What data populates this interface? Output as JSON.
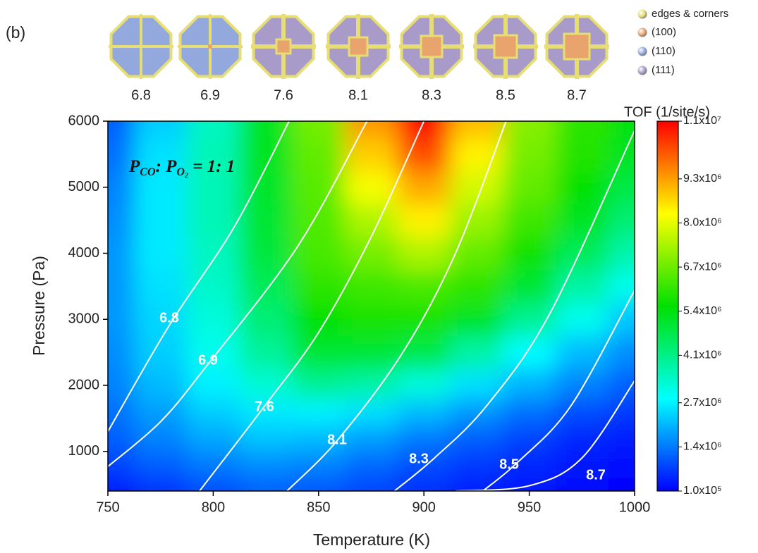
{
  "chart_data": {
    "type": "contour",
    "panel_label": "(b)",
    "xlabel": "Temperature (K)",
    "ylabel": "Pressure (Pa)",
    "colorbar_label": "TOF (1/site/s)",
    "annotation": [
      "P",
      "CO",
      ": ",
      "P",
      "O",
      "2",
      " = 1: 1"
    ],
    "xlim": [
      750,
      1000
    ],
    "xticks": [
      750,
      800,
      850,
      900,
      950,
      1000
    ],
    "ylim": [
      400,
      6000
    ],
    "yticks": [
      1000,
      2000,
      3000,
      4000,
      5000,
      6000
    ],
    "clim": [
      100000.0,
      11000000.0
    ],
    "cticks": [
      {
        "value": 100000.0,
        "label": "1.0x10⁵"
      },
      {
        "value": 1400000.0,
        "label": "1.4x10⁶"
      },
      {
        "value": 2700000.0,
        "label": "2.7x10⁶"
      },
      {
        "value": 4100000.0,
        "label": "4.1x10⁶"
      },
      {
        "value": 5400000.0,
        "label": "5.4x10⁶"
      },
      {
        "value": 6700000.0,
        "label": "6.7x10⁶"
      },
      {
        "value": 8000000.0,
        "label": "8.0x10⁶"
      },
      {
        "value": 9300000.0,
        "label": "9.3x10⁶"
      },
      {
        "value": 11000000.0,
        "label": "1.1x10⁷"
      }
    ],
    "colormap": [
      "#0000ff",
      "#00ffff",
      "#00e000",
      "#ffff00",
      "#ff0000"
    ],
    "x": [
      750,
      775,
      800,
      825,
      850,
      875,
      900,
      925,
      950,
      975,
      1000
    ],
    "y": [
      400,
      800,
      1200,
      1600,
      2000,
      2500,
      3000,
      3500,
      4000,
      4500,
      5000,
      5500,
      6000
    ],
    "z": [
      [
        300000.0,
        600000.0,
        900000.0,
        1100000.0,
        1000000.0,
        800000.0,
        600000.0,
        400000.0,
        300000.0,
        200000.0,
        100000.0
      ],
      [
        800000.0,
        1100000.0,
        1400000.0,
        1600000.0,
        1500000.0,
        1200000.0,
        900000.0,
        700000.0,
        500000.0,
        300000.0,
        200000.0
      ],
      [
        1100000.0,
        1500000.0,
        1900000.0,
        2200000.0,
        2100000.0,
        1800000.0,
        1400000.0,
        1100000.0,
        800000.0,
        500000.0,
        400000.0
      ],
      [
        1300000.0,
        1800000.0,
        2300000.0,
        2600000.0,
        2700000.0,
        2500000.0,
        2100000.0,
        1700000.0,
        1300000.0,
        900000.0,
        700000.0
      ],
      [
        1500000.0,
        2100000.0,
        2700000.0,
        3300000.0,
        4000000.0,
        3800000.0,
        3200000.0,
        2500000.0,
        2000000.0,
        1500000.0,
        1100000.0
      ],
      [
        1600000.0,
        2300000.0,
        3000000.0,
        3900000.0,
        5000000.0,
        5000000.0,
        4800000.0,
        3800000.0,
        2800000.0,
        2100000.0,
        1600000.0
      ],
      [
        1700000.0,
        2400000.0,
        3200000.0,
        4300000.0,
        5600000.0,
        5800000.0,
        5800000.0,
        5200000.0,
        4000000.0,
        3000000.0,
        2200000.0
      ],
      [
        1700000.0,
        2500000.0,
        3400000.0,
        4600000.0,
        6000000.0,
        6200000.0,
        6300000.0,
        6000000.0,
        5000000.0,
        3800000.0,
        3000000.0
      ],
      [
        1700000.0,
        2600000.0,
        3500000.0,
        4900000.0,
        6300000.0,
        6800000.0,
        7400000.0,
        6600000.0,
        5700000.0,
        4600000.0,
        3700000.0
      ],
      [
        1600000.0,
        2600000.0,
        3600000.0,
        5000000.0,
        6400000.0,
        7400000.0,
        8400000.0,
        7200000.0,
        6200000.0,
        5200000.0,
        4300000.0
      ],
      [
        1500000.0,
        2600000.0,
        3600000.0,
        5100000.0,
        6500000.0,
        8200000.0,
        9200000.0,
        7800000.0,
        6600000.0,
        5600000.0,
        4800000.0
      ],
      [
        1300000.0,
        2500000.0,
        3600000.0,
        5200000.0,
        6600000.0,
        8800000.0,
        10200000.0,
        8400000.0,
        6800000.0,
        5900000.0,
        5200000.0
      ],
      [
        1100000.0,
        2300000.0,
        3500000.0,
        5200000.0,
        6800000.0,
        9400000.0,
        11000000.0,
        9000000.0,
        7000000.0,
        6000000.0,
        5400000.0
      ]
    ],
    "contours": [
      {
        "label": "6.8",
        "x": [
          750,
          779,
          810,
          836
        ],
        "y": [
          1300,
          2900,
          4400,
          6000
        ]
      },
      {
        "label": "6.9",
        "x": [
          750,
          775,
          797,
          840,
          873
        ],
        "y": [
          770,
          1450,
          2300,
          4100,
          6000
        ]
      },
      {
        "label": "7.6",
        "x": [
          793.5,
          824,
          850,
          875,
          900
        ],
        "y": [
          400,
          1670,
          2800,
          4250,
          6000
        ]
      },
      {
        "label": "8.1",
        "x": [
          835,
          859,
          890,
          915,
          939
        ],
        "y": [
          400,
          1170,
          2500,
          4000,
          6000
        ]
      },
      {
        "label": "8.3",
        "x": [
          886,
          905,
          930,
          960,
          1000
        ],
        "y": [
          400,
          900,
          1700,
          3100,
          5860
        ]
      },
      {
        "label": "8.5",
        "x": [
          928,
          945,
          970,
          1000
        ],
        "y": [
          400,
          850,
          1700,
          3440
        ]
      },
      {
        "label": "8.7",
        "x": [
          915,
          950,
          975,
          1000
        ],
        "y": [
          400,
          480,
          900,
          2070
        ]
      }
    ],
    "legend": [
      {
        "name": "edges & corners",
        "color": "#e6de74"
      },
      {
        "name": "(100)",
        "color": "#e8a46c"
      },
      {
        "name": "(110)",
        "color": "#93a8dc"
      },
      {
        "name": "(111)",
        "color": "#a99bc9"
      }
    ]
  }
}
